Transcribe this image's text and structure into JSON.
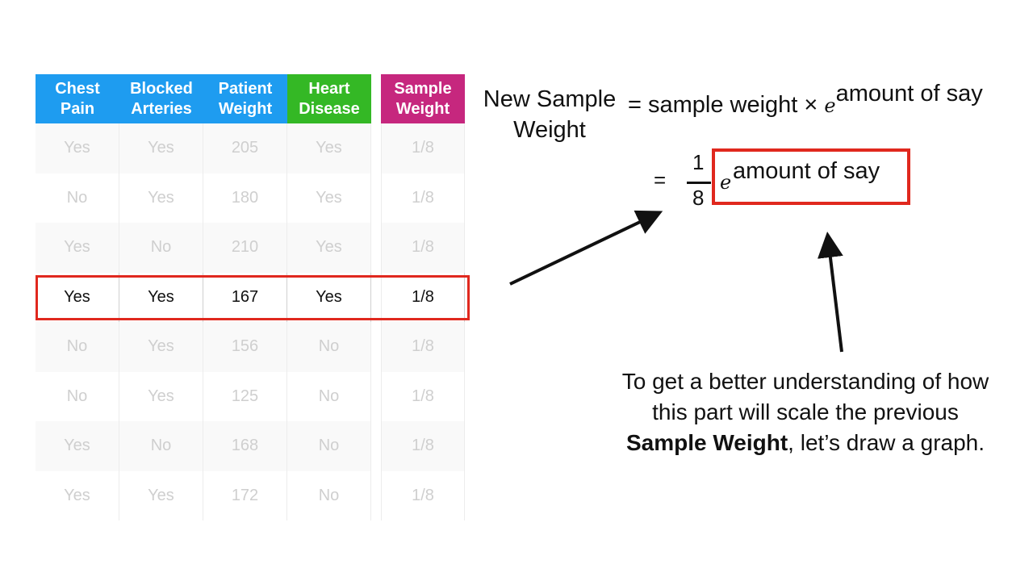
{
  "table": {
    "headers": [
      {
        "line1": "Chest",
        "line2": "Pain"
      },
      {
        "line1": "Blocked",
        "line2": "Arteries"
      },
      {
        "line1": "Patient",
        "line2": "Weight"
      },
      {
        "line1": "Heart",
        "line2": "Disease"
      },
      {
        "line1": "Sample",
        "line2": "Weight"
      }
    ],
    "rows": [
      [
        "Yes",
        "Yes",
        "205",
        "Yes",
        "1/8"
      ],
      [
        "No",
        "Yes",
        "180",
        "Yes",
        "1/8"
      ],
      [
        "Yes",
        "No",
        "210",
        "Yes",
        "1/8"
      ],
      [
        "Yes",
        "Yes",
        "167",
        "Yes",
        "1/8"
      ],
      [
        "No",
        "Yes",
        "156",
        "No",
        "1/8"
      ],
      [
        "No",
        "Yes",
        "125",
        "No",
        "1/8"
      ],
      [
        "Yes",
        "No",
        "168",
        "No",
        "1/8"
      ],
      [
        "Yes",
        "Yes",
        "172",
        "No",
        "1/8"
      ]
    ],
    "highlighted_row": 3
  },
  "formula": {
    "label_line1": "New Sample",
    "label_line2": "Weight",
    "rhs_text": "= sample weight ×",
    "e": "e",
    "exponent": "amount of say",
    "equals": "=",
    "fraction_num": "1",
    "fraction_den": "8"
  },
  "caption": {
    "part1": "To get a better understanding of how this part will scale the previous",
    "bold": "Sample Weight",
    "part2": ", let’s draw a graph."
  },
  "colors": {
    "blue_header": "#1e9cf0",
    "green_header": "#34b825",
    "magenta_header": "#c6277e",
    "highlight_red": "#e0281e"
  }
}
